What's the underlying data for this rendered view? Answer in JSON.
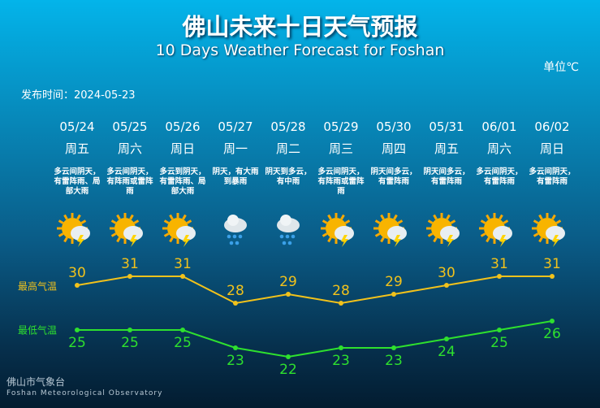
{
  "header": {
    "title": "佛山未来十日天气预报",
    "subtitle": "10 Days Weather Forecast for Foshan",
    "unit": "单位℃",
    "published": "发布时间：2024-05-23"
  },
  "days": [
    {
      "weekday": "周五",
      "weather": "多云间阴天，有雷阵雨、局部大雨"
    },
    {
      "weekday": "周六",
      "weather": "多云间阴天，有阵雨或雷阵雨"
    },
    {
      "weekday": "周日",
      "weather": "多云到阴天，有雷阵雨、局部大雨"
    },
    {
      "weekday": "周一",
      "weather": "阴天，有大雨到暴雨"
    },
    {
      "weekday": "周二",
      "weather": "阴天到多云，有中雨"
    },
    {
      "weekday": "周三",
      "weather": "多云间阴天，有阵雨或雷阵雨"
    },
    {
      "weekday": "周四",
      "weather": "阴天间多云，有雷阵雨"
    },
    {
      "weekday": "周五",
      "weather": "阴天间多云，有雷阵雨"
    },
    {
      "weekday": "周六",
      "weather": "多云间阴天，有雷阵雨"
    },
    {
      "weekday": "周日",
      "weather": "多云间阴天，有雷阵雨"
    }
  ],
  "chart_data": {
    "type": "line",
    "categories": [
      "05/24",
      "05/25",
      "05/26",
      "05/27",
      "05/28",
      "05/29",
      "05/30",
      "05/31",
      "06/01",
      "06/02"
    ],
    "series": [
      {
        "name": "最高气温",
        "color": "#f2c21b",
        "values": [
          30,
          31,
          31,
          28,
          29,
          28,
          29,
          30,
          31,
          31
        ]
      },
      {
        "name": "最低气温",
        "color": "#2ee02e",
        "values": [
          25,
          25,
          25,
          23,
          22,
          23,
          23,
          24,
          25,
          26
        ]
      }
    ]
  },
  "footer": {
    "name": "佛山市气象台",
    "english": "Foshan Meteorological Observatory"
  }
}
